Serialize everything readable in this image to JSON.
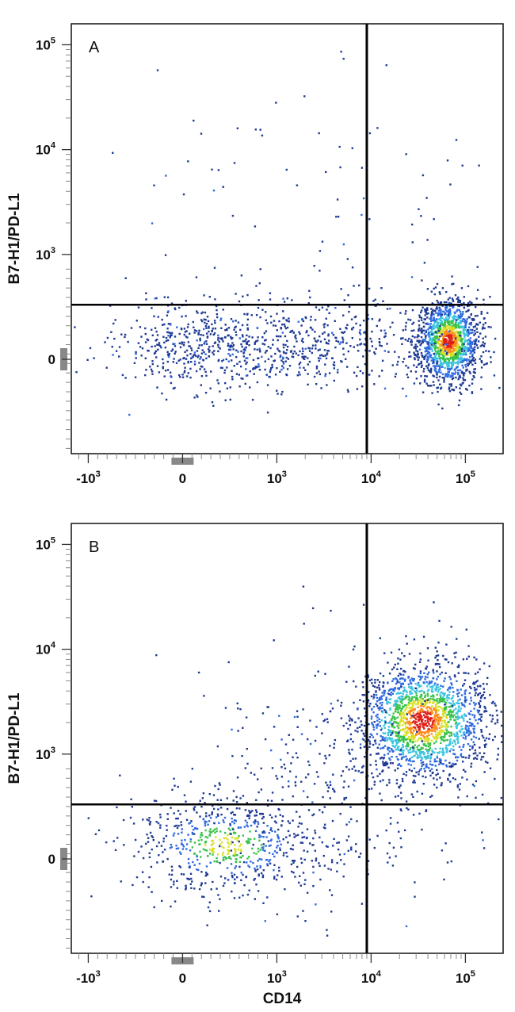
{
  "chart_data": [
    {
      "type": "scatter",
      "panel_label": "A",
      "xlabel": "",
      "ylabel": "B7-H1/PD-L1",
      "x_scale": "biexponential",
      "y_scale": "biexponential",
      "x_ticks": [
        {
          "value": -1000,
          "label": "-10",
          "sup": "3"
        },
        {
          "value": 0,
          "label": "0",
          "sup": ""
        },
        {
          "value": 1000,
          "label": "10",
          "sup": "3"
        },
        {
          "value": 10000,
          "label": "10",
          "sup": "4"
        },
        {
          "value": 100000,
          "label": "10",
          "sup": "5"
        }
      ],
      "y_ticks": [
        {
          "value": 0,
          "label": "0",
          "sup": ""
        },
        {
          "value": 1000,
          "label": "10",
          "sup": "3"
        },
        {
          "value": 10000,
          "label": "10",
          "sup": "4"
        },
        {
          "value": 100000,
          "label": "10",
          "sup": "5"
        }
      ],
      "quadrant_gates": {
        "x": 9000,
        "y": 520
      },
      "populations": [
        {
          "name": "",
          "x_center": 65000,
          "y_center": 180,
          "x_spread": 0.16,
          "y_spread": 0.2,
          "count": 1400,
          "density": "high"
        },
        {
          "name": "",
          "x_center": 1500,
          "y_center": 160,
          "x_spread": 1.0,
          "y_spread": 0.22,
          "count": 700,
          "density": "low"
        },
        {
          "name": "",
          "x_center": 150,
          "y_center": 120,
          "x_spread": 0.35,
          "y_spread": 0.2,
          "count": 260,
          "density": "low"
        },
        {
          "name": "",
          "x_center": 2000,
          "y_center": 4000,
          "x_spread": 1.0,
          "y_spread": 0.7,
          "count": 90,
          "density": "low"
        }
      ],
      "colormap": [
        "#1f3a93",
        "#2f6ae0",
        "#3cc4e0",
        "#39c24a",
        "#d8e026",
        "#ff8c1a",
        "#e0201a"
      ]
    },
    {
      "type": "scatter",
      "panel_label": "B",
      "xlabel": "CD14",
      "ylabel": "B7-H1/PD-L1",
      "x_scale": "biexponential",
      "y_scale": "biexponential",
      "x_ticks": [
        {
          "value": -1000,
          "label": "-10",
          "sup": "3"
        },
        {
          "value": 0,
          "label": "0",
          "sup": ""
        },
        {
          "value": 1000,
          "label": "10",
          "sup": "3"
        },
        {
          "value": 10000,
          "label": "10",
          "sup": "4"
        },
        {
          "value": 100000,
          "label": "10",
          "sup": "5"
        }
      ],
      "y_ticks": [
        {
          "value": 0,
          "label": "0",
          "sup": ""
        },
        {
          "value": 1000,
          "label": "10",
          "sup": "3"
        },
        {
          "value": 10000,
          "label": "10",
          "sup": "4"
        },
        {
          "value": 100000,
          "label": "10",
          "sup": "5"
        }
      ],
      "quadrant_gates": {
        "x": 9000,
        "y": 520
      },
      "populations": [
        {
          "name": "",
          "x_center": 35000,
          "y_center": 2100,
          "x_spread": 0.35,
          "y_spread": 0.28,
          "count": 1800,
          "density": "high"
        },
        {
          "name": "",
          "x_center": 450,
          "y_center": 140,
          "x_spread": 0.55,
          "y_spread": 0.25,
          "count": 650,
          "density": "medium"
        },
        {
          "name": "",
          "x_center": 3000,
          "y_center": 700,
          "x_spread": 0.8,
          "y_spread": 0.6,
          "count": 350,
          "density": "low"
        }
      ],
      "colormap": [
        "#1f3a93",
        "#2f6ae0",
        "#3cc4e0",
        "#39c24a",
        "#d8e026",
        "#ff8c1a",
        "#e0201a"
      ]
    }
  ]
}
